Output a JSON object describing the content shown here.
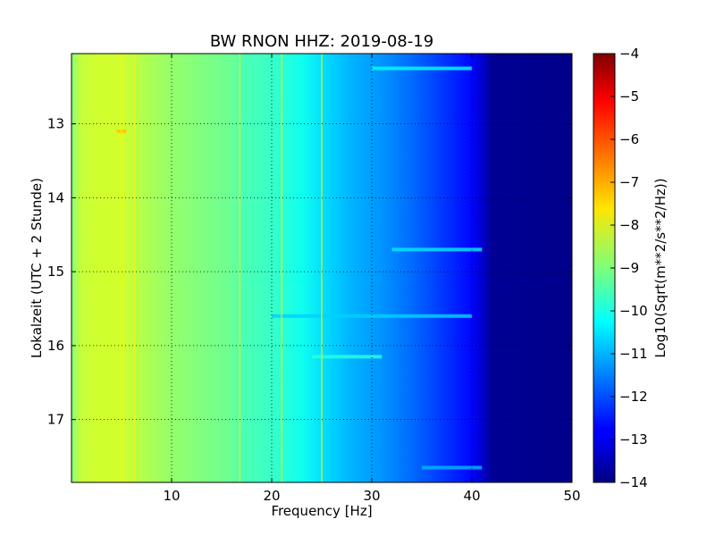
{
  "chart_data": {
    "type": "heatmap",
    "title": "BW RNON HHZ: 2019-08-19",
    "xlabel": "Frequency [Hz]",
    "ylabel": "Lokalzeit (UTC + 2 Stunde)",
    "xlim": [
      0,
      50
    ],
    "ylim": [
      12.05,
      17.85
    ],
    "y_inverted": true,
    "x_ticks": [
      10,
      20,
      30,
      40,
      50
    ],
    "x_tick_labels": [
      "10",
      "20",
      "30",
      "40",
      "50"
    ],
    "y_ticks": [
      13,
      14,
      15,
      16,
      17
    ],
    "y_tick_labels": [
      "13",
      "14",
      "15",
      "16",
      "17"
    ],
    "grid": true,
    "colormap": "jet",
    "colorbar": {
      "label": "Log10(Sqrt(m**2/s**2/Hz))",
      "min": -14,
      "max": -4,
      "ticks": [
        -4,
        -5,
        -6,
        -7,
        -8,
        -9,
        -10,
        -11,
        -12,
        -13,
        -14
      ],
      "tick_labels": [
        "−4",
        "−5",
        "−6",
        "−7",
        "−8",
        "−9",
        "−10",
        "−11",
        "−12",
        "−13",
        "−14"
      ]
    },
    "spectrum_profile": {
      "frequency_hz": [
        0,
        1,
        3,
        5,
        7,
        10,
        13,
        16,
        17,
        20,
        23,
        26,
        28,
        31,
        34,
        37,
        40,
        41,
        42,
        50
      ],
      "log_amplitude": [
        -8.9,
        -8.3,
        -8.2,
        -8.2,
        -8.5,
        -8.8,
        -9.0,
        -9.2,
        -9.5,
        -9.7,
        -10.1,
        -10.7,
        -11.0,
        -11.3,
        -11.7,
        -12.2,
        -12.7,
        -13.2,
        -13.8,
        -13.9
      ]
    },
    "narrow_lines_hz": [
      5.0,
      6.3,
      16.8,
      21.0,
      25.0
    ],
    "highlighted_streaks": [
      {
        "time": 12.25,
        "f_start": 30,
        "f_end": 40,
        "level": -10.3
      },
      {
        "time": 13.1,
        "f_start": 4.5,
        "f_end": 5.5,
        "level": -7.2
      },
      {
        "time": 14.7,
        "f_start": 32,
        "f_end": 41,
        "level": -10.5
      },
      {
        "time": 15.6,
        "f_start": 20,
        "f_end": 40,
        "level": -10.7
      },
      {
        "time": 16.15,
        "f_start": 24,
        "f_end": 31,
        "level": -9.9
      },
      {
        "time": 17.65,
        "f_start": 35,
        "f_end": 41,
        "level": -11.0
      }
    ]
  }
}
